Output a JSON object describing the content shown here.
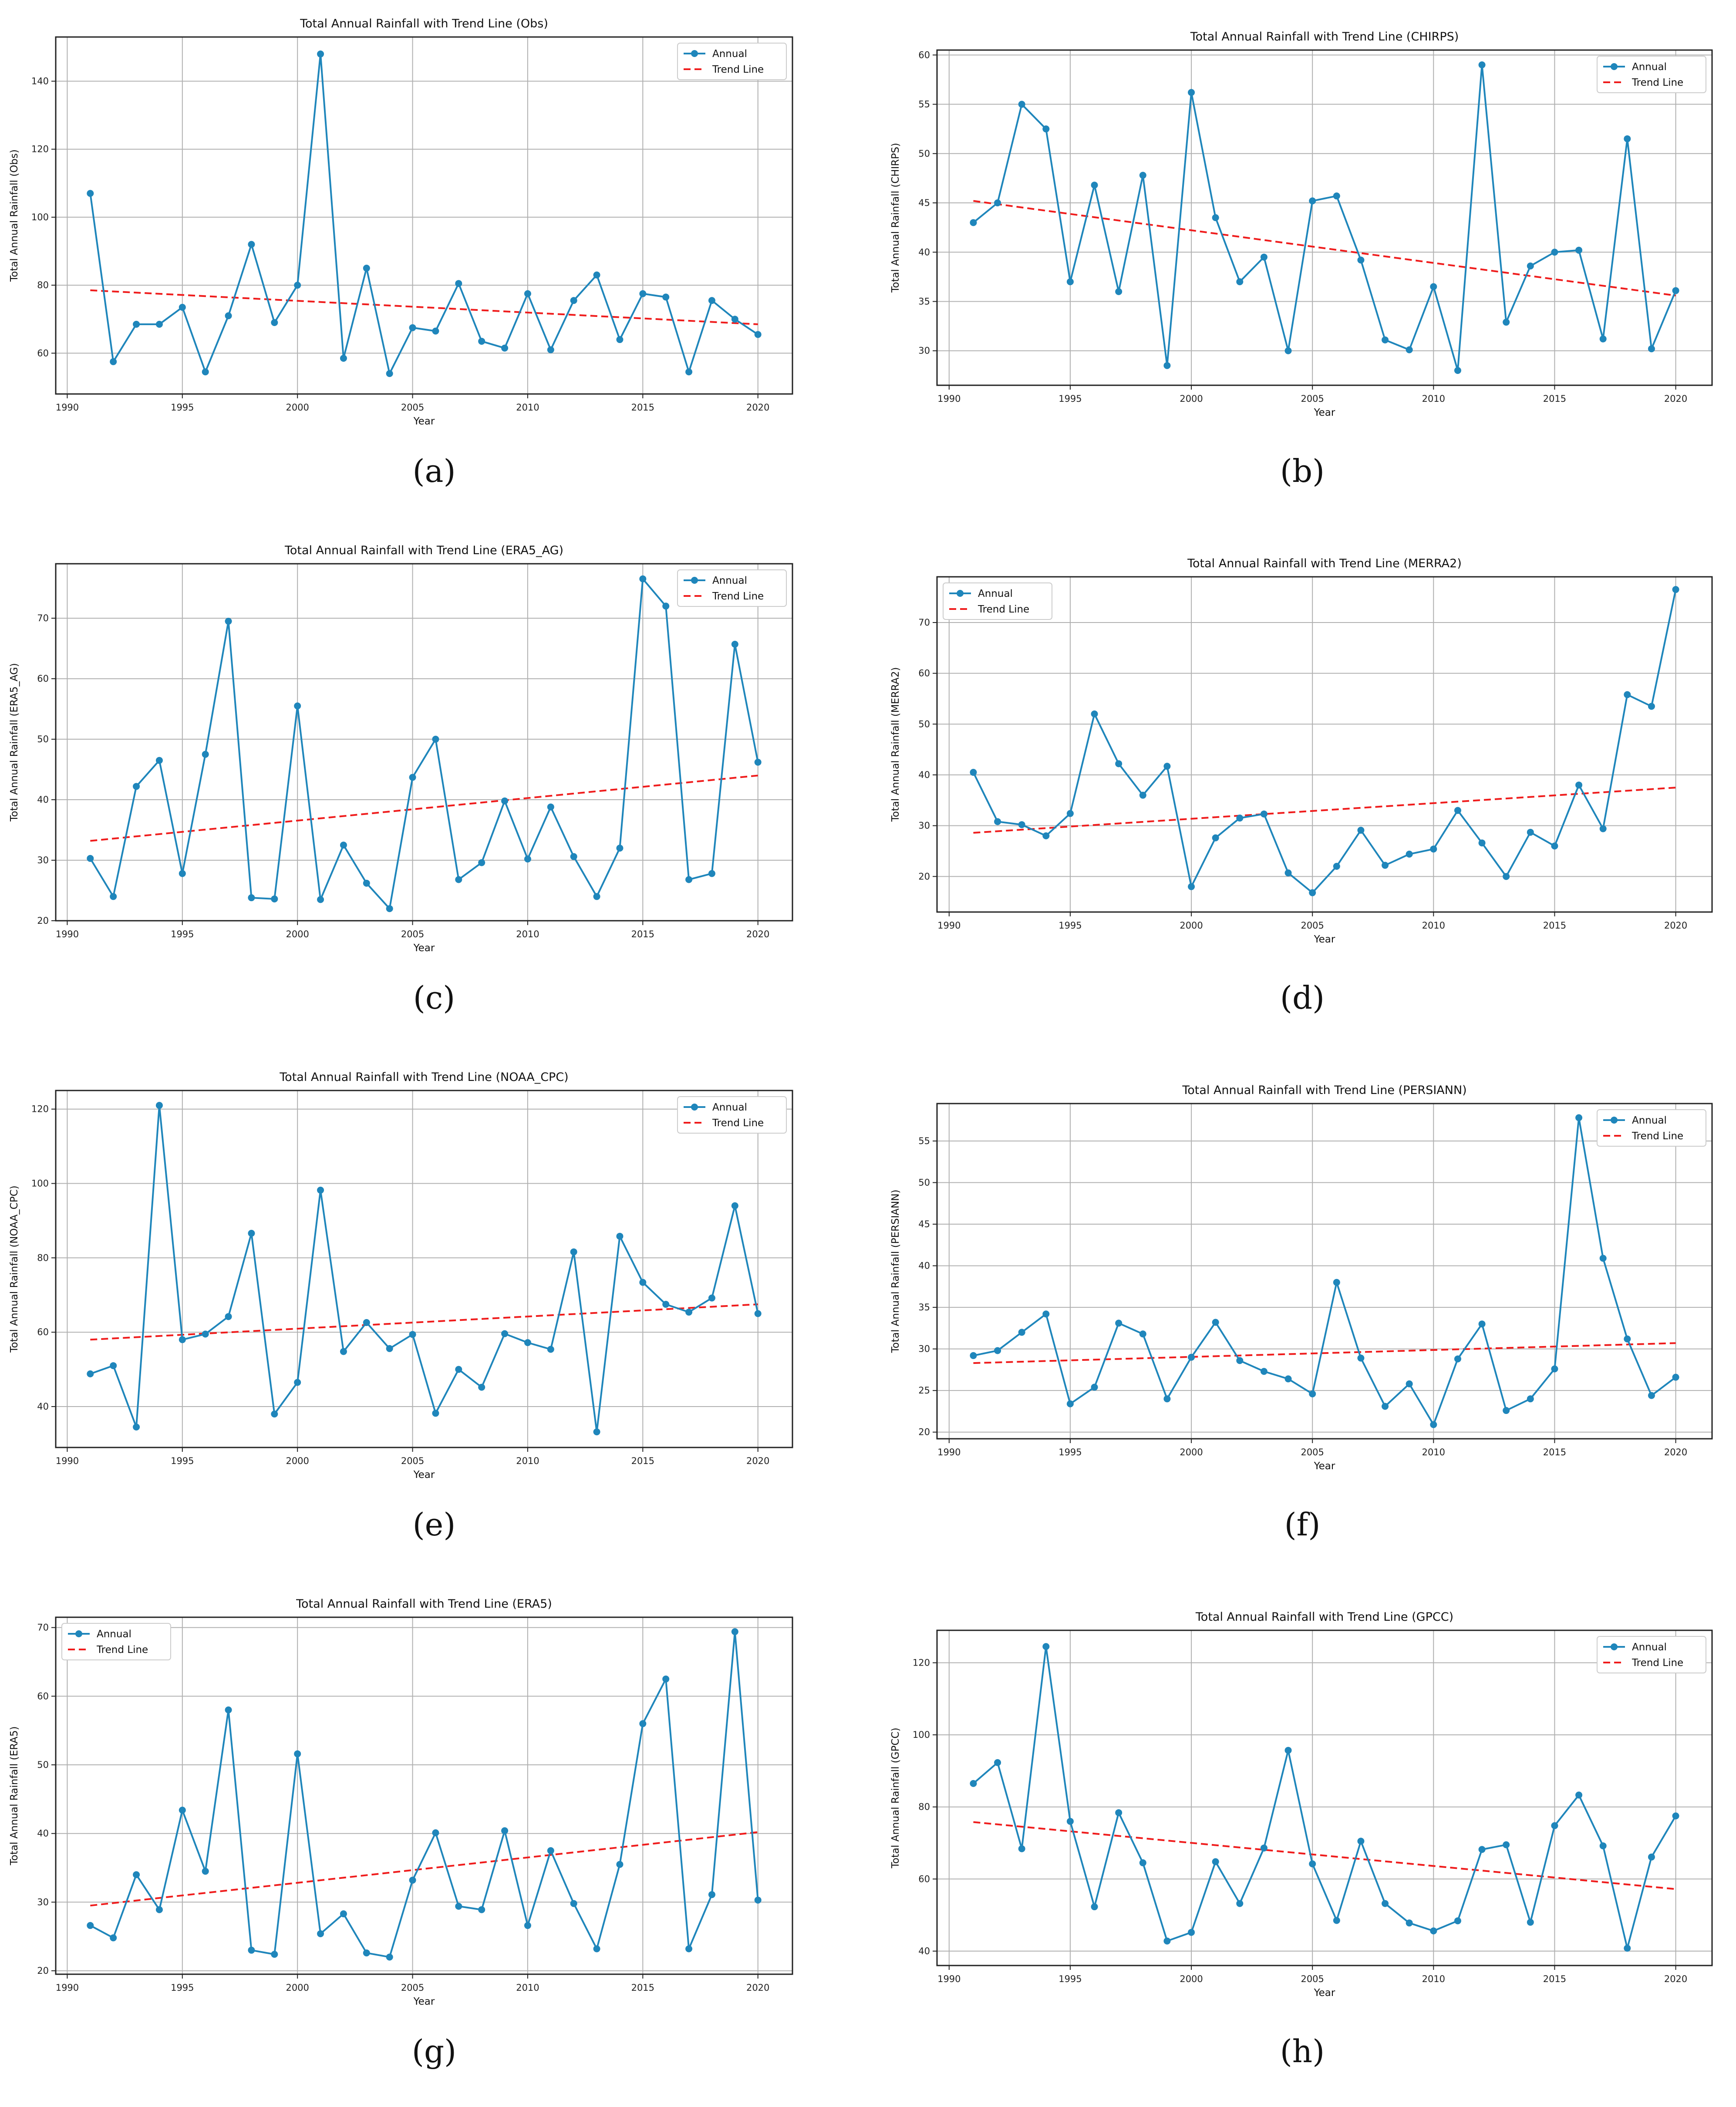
{
  "colors": {
    "series": "#1f86bb",
    "trend": "#ef1c1c"
  },
  "chart_data": [
    {
      "type": "line",
      "caption": "(a)",
      "title": "Total Annual Rainfall with Trend Line (Obs)",
      "xlabel": "Year",
      "ylabel": "Total Annual Rainfall (Obs)",
      "xlim": [
        1989.5,
        2021.5
      ],
      "ylim": [
        48,
        153
      ],
      "xticks": [
        1990,
        1995,
        2000,
        2005,
        2010,
        2015,
        2020
      ],
      "yticks": [
        60,
        80,
        100,
        120,
        140
      ],
      "legend": "top-right",
      "legend_labels": [
        "Annual",
        "Trend Line"
      ],
      "x": [
        1991,
        1992,
        1993,
        1994,
        1995,
        1996,
        1997,
        1998,
        1999,
        2000,
        2001,
        2002,
        2003,
        2004,
        2005,
        2006,
        2007,
        2008,
        2009,
        2010,
        2011,
        2012,
        2013,
        2014,
        2015,
        2016,
        2017,
        2018,
        2019,
        2020
      ],
      "series": [
        {
          "name": "Annual",
          "values": [
            107,
            57.5,
            68.5,
            68.5,
            73.5,
            54.5,
            71,
            92,
            69,
            80,
            148,
            58.5,
            85,
            54,
            67.5,
            66.5,
            80.5,
            63.5,
            61.5,
            77.5,
            61,
            75.5,
            83,
            64,
            77.5,
            76.5,
            54.5,
            75.5,
            70,
            65.5
          ]
        }
      ],
      "trend": {
        "name": "Trend Line",
        "start": [
          1991,
          78.5
        ],
        "end": [
          2020,
          68.5
        ]
      }
    },
    {
      "type": "line",
      "caption": "(b)",
      "title": "Total Annual Rainfall with Trend Line (CHIRPS)",
      "xlabel": "Year",
      "ylabel": "Total Annual Rainfall (CHIRPS)",
      "xlim": [
        1989.5,
        2021.5
      ],
      "ylim": [
        26.5,
        60.5
      ],
      "xticks": [
        1990,
        1995,
        2000,
        2005,
        2010,
        2015,
        2020
      ],
      "yticks": [
        30,
        35,
        40,
        45,
        50,
        55,
        60
      ],
      "legend": "top-right",
      "legend_labels": [
        "Annual",
        "Trend Line"
      ],
      "x": [
        1991,
        1992,
        1993,
        1994,
        1995,
        1996,
        1997,
        1998,
        1999,
        2000,
        2001,
        2002,
        2003,
        2004,
        2005,
        2006,
        2007,
        2008,
        2009,
        2010,
        2011,
        2012,
        2013,
        2014,
        2015,
        2016,
        2017,
        2018,
        2019,
        2020
      ],
      "series": [
        {
          "name": "Annual",
          "values": [
            43,
            45,
            55,
            52.5,
            37,
            46.8,
            36,
            47.8,
            28.5,
            56.2,
            43.5,
            37,
            39.5,
            30,
            45.2,
            45.7,
            39.2,
            31.1,
            30.1,
            36.5,
            28,
            59,
            32.9,
            38.6,
            40,
            40.2,
            31.2,
            51.5,
            30.2,
            36.1
          ]
        }
      ],
      "trend": {
        "name": "Trend Line",
        "start": [
          1991,
          45.2
        ],
        "end": [
          2020,
          35.6
        ]
      }
    },
    {
      "type": "line",
      "caption": "(c)",
      "title": "Total Annual Rainfall with Trend Line (ERA5_AG)",
      "xlabel": "Year",
      "ylabel": "Total Annual Rainfall (ERA5_AG)",
      "xlim": [
        1989.5,
        2021.5
      ],
      "ylim": [
        20,
        79
      ],
      "xticks": [
        1990,
        1995,
        2000,
        2005,
        2010,
        2015,
        2020
      ],
      "yticks": [
        20,
        30,
        40,
        50,
        60,
        70
      ],
      "legend": "top-right",
      "legend_labels": [
        "Annual",
        "Trend Line"
      ],
      "x": [
        1991,
        1992,
        1993,
        1994,
        1995,
        1996,
        1997,
        1998,
        1999,
        2000,
        2001,
        2002,
        2003,
        2004,
        2005,
        2006,
        2007,
        2008,
        2009,
        2010,
        2011,
        2012,
        2013,
        2014,
        2015,
        2016,
        2017,
        2018,
        2019,
        2020
      ],
      "series": [
        {
          "name": "Annual",
          "values": [
            30.3,
            24,
            42.2,
            46.5,
            27.8,
            47.5,
            69.5,
            23.8,
            23.6,
            55.5,
            23.5,
            32.5,
            26.2,
            22,
            43.7,
            50,
            26.8,
            29.6,
            39.8,
            30.2,
            38.8,
            30.6,
            24,
            32,
            76.5,
            72,
            26.8,
            27.8,
            65.7,
            46.2
          ]
        }
      ],
      "trend": {
        "name": "Trend Line",
        "start": [
          1991,
          33.2
        ],
        "end": [
          2020,
          44
        ]
      }
    },
    {
      "type": "line",
      "caption": "(d)",
      "title": "Total Annual Rainfall with Trend Line (MERRA2)",
      "xlabel": "Year",
      "ylabel": "Total Annual Rainfall (MERRA2)",
      "xlim": [
        1989.5,
        2021.5
      ],
      "ylim": [
        13,
        79
      ],
      "xticks": [
        1990,
        1995,
        2000,
        2005,
        2010,
        2015,
        2020
      ],
      "yticks": [
        20,
        30,
        40,
        50,
        60,
        70
      ],
      "legend": "top-left",
      "legend_labels": [
        "Annual",
        "Trend Line"
      ],
      "x": [
        1991,
        1992,
        1993,
        1994,
        1995,
        1996,
        1997,
        1998,
        1999,
        2000,
        2001,
        2002,
        2003,
        2004,
        2005,
        2006,
        2007,
        2008,
        2009,
        2010,
        2011,
        2012,
        2013,
        2014,
        2015,
        2016,
        2017,
        2018,
        2019,
        2020
      ],
      "series": [
        {
          "name": "Annual",
          "values": [
            40.5,
            30.8,
            30.2,
            28,
            32.4,
            52,
            42.2,
            36,
            41.7,
            18,
            27.6,
            31.5,
            32.3,
            20.7,
            16.8,
            22,
            29.1,
            22.2,
            24.4,
            25.4,
            33,
            26.6,
            20,
            28.7,
            26,
            38,
            29.4,
            55.8,
            53.5,
            76.5
          ]
        }
      ],
      "trend": {
        "name": "Trend Line",
        "start": [
          1991,
          28.6
        ],
        "end": [
          2020,
          37.5
        ]
      }
    },
    {
      "type": "line",
      "caption": "(e)",
      "title": "Total Annual Rainfall with Trend Line (NOAA_CPC)",
      "xlabel": "Year",
      "ylabel": "Total Annual Rainfall (NOAA_CPC)",
      "xlim": [
        1989.5,
        2021.5
      ],
      "ylim": [
        29,
        125
      ],
      "xticks": [
        1990,
        1995,
        2000,
        2005,
        2010,
        2015,
        2020
      ],
      "yticks": [
        40,
        60,
        80,
        100,
        120
      ],
      "legend": "top-right",
      "legend_labels": [
        "Annual",
        "Trend Line"
      ],
      "x": [
        1991,
        1992,
        1993,
        1994,
        1995,
        1996,
        1997,
        1998,
        1999,
        2000,
        2001,
        2002,
        2003,
        2004,
        2005,
        2006,
        2007,
        2008,
        2009,
        2010,
        2011,
        2012,
        2013,
        2014,
        2015,
        2016,
        2017,
        2018,
        2019,
        2020
      ],
      "series": [
        {
          "name": "Annual",
          "values": [
            48.8,
            51,
            34.5,
            121,
            58,
            59.5,
            64.2,
            86.6,
            38,
            46.5,
            98.2,
            54.8,
            62.6,
            55.6,
            59.4,
            38.2,
            50,
            45.2,
            59.6,
            57.2,
            55.4,
            81.6,
            33.2,
            85.8,
            73.4,
            67.5,
            65.4,
            69.2,
            94,
            65
          ]
        }
      ],
      "trend": {
        "name": "Trend Line",
        "start": [
          1991,
          58
        ],
        "end": [
          2020,
          67.5
        ]
      }
    },
    {
      "type": "line",
      "caption": "(f)",
      "title": "Total Annual Rainfall with Trend Line (PERSIANN)",
      "xlabel": "Year",
      "ylabel": "Total Annual Rainfall (PERSIANN)",
      "xlim": [
        1989.5,
        2021.5
      ],
      "ylim": [
        19.2,
        59.5
      ],
      "xticks": [
        1990,
        1995,
        2000,
        2005,
        2010,
        2015,
        2020
      ],
      "yticks": [
        20,
        25,
        30,
        35,
        40,
        45,
        50,
        55
      ],
      "legend": "top-right",
      "legend_labels": [
        "Annual",
        "Trend Line"
      ],
      "x": [
        1991,
        1992,
        1993,
        1994,
        1995,
        1996,
        1997,
        1998,
        1999,
        2000,
        2001,
        2002,
        2003,
        2004,
        2005,
        2006,
        2007,
        2008,
        2009,
        2010,
        2011,
        2012,
        2013,
        2014,
        2015,
        2016,
        2017,
        2018,
        2019,
        2020
      ],
      "series": [
        {
          "name": "Annual",
          "values": [
            29.2,
            29.8,
            32,
            34.2,
            23.4,
            25.4,
            33.1,
            31.8,
            24,
            29,
            33.2,
            28.6,
            27.3,
            26.4,
            24.6,
            38,
            28.9,
            23.1,
            25.8,
            20.9,
            28.8,
            33,
            22.6,
            24,
            27.6,
            57.8,
            40.9,
            31.2,
            24.4,
            26.6
          ]
        }
      ],
      "trend": {
        "name": "Trend Line",
        "start": [
          1991,
          28.3
        ],
        "end": [
          2020,
          30.7
        ]
      }
    },
    {
      "type": "line",
      "caption": "(g)",
      "title": "Total Annual Rainfall with Trend Line (ERA5)",
      "xlabel": "Year",
      "ylabel": "Total Annual Rainfall (ERA5)",
      "xlim": [
        1989.5,
        2021.5
      ],
      "ylim": [
        19.5,
        71.5
      ],
      "xticks": [
        1990,
        1995,
        2000,
        2005,
        2010,
        2015,
        2020
      ],
      "yticks": [
        20,
        30,
        40,
        50,
        60,
        70
      ],
      "legend": "top-left",
      "legend_labels": [
        "Annual",
        "Trend Line"
      ],
      "x": [
        1991,
        1992,
        1993,
        1994,
        1995,
        1996,
        1997,
        1998,
        1999,
        2000,
        2001,
        2002,
        2003,
        2004,
        2005,
        2006,
        2007,
        2008,
        2009,
        2010,
        2011,
        2012,
        2013,
        2014,
        2015,
        2016,
        2017,
        2018,
        2019,
        2020
      ],
      "series": [
        {
          "name": "Annual",
          "values": [
            26.6,
            24.8,
            34,
            28.9,
            43.4,
            34.5,
            58,
            23,
            22.4,
            51.6,
            25.4,
            28.3,
            22.6,
            22,
            33.2,
            40.1,
            29.4,
            28.9,
            40.4,
            26.6,
            37.5,
            29.8,
            23.2,
            35.5,
            56,
            62.5,
            23.2,
            31.1,
            69.4,
            30.3
          ]
        }
      ],
      "trend": {
        "name": "Trend Line",
        "start": [
          1991,
          29.5
        ],
        "end": [
          2020,
          40.2
        ]
      }
    },
    {
      "type": "line",
      "caption": "(h)",
      "title": "Total Annual Rainfall with Trend Line (GPCC)",
      "xlabel": "Year",
      "ylabel": "Total Annual Rainfall (GPCC)",
      "xlim": [
        1989.5,
        2021.5
      ],
      "ylim": [
        36,
        129
      ],
      "xticks": [
        1990,
        1995,
        2000,
        2005,
        2010,
        2015,
        2020
      ],
      "yticks": [
        40,
        60,
        80,
        100,
        120
      ],
      "legend": "top-right",
      "legend_labels": [
        "Annual",
        "Trend Line"
      ],
      "x": [
        1991,
        1992,
        1993,
        1994,
        1995,
        1996,
        1997,
        1998,
        1999,
        2000,
        2001,
        2002,
        2003,
        2004,
        2005,
        2006,
        2007,
        2008,
        2009,
        2010,
        2011,
        2012,
        2013,
        2014,
        2015,
        2016,
        2017,
        2018,
        2019,
        2020
      ],
      "series": [
        {
          "name": "Annual",
          "values": [
            86.5,
            92.3,
            68.4,
            124.5,
            76,
            52.3,
            78.4,
            64.5,
            42.8,
            45.2,
            64.8,
            53.2,
            68.6,
            95.7,
            64.2,
            48.5,
            70.5,
            53.2,
            47.8,
            45.6,
            48.4,
            68.2,
            69.5,
            48,
            74.8,
            83.3,
            69.2,
            40.8,
            66.1,
            77.5
          ]
        }
      ],
      "trend": {
        "name": "Trend Line",
        "start": [
          1991,
          75.8
        ],
        "end": [
          2020,
          57.2
        ]
      }
    }
  ]
}
